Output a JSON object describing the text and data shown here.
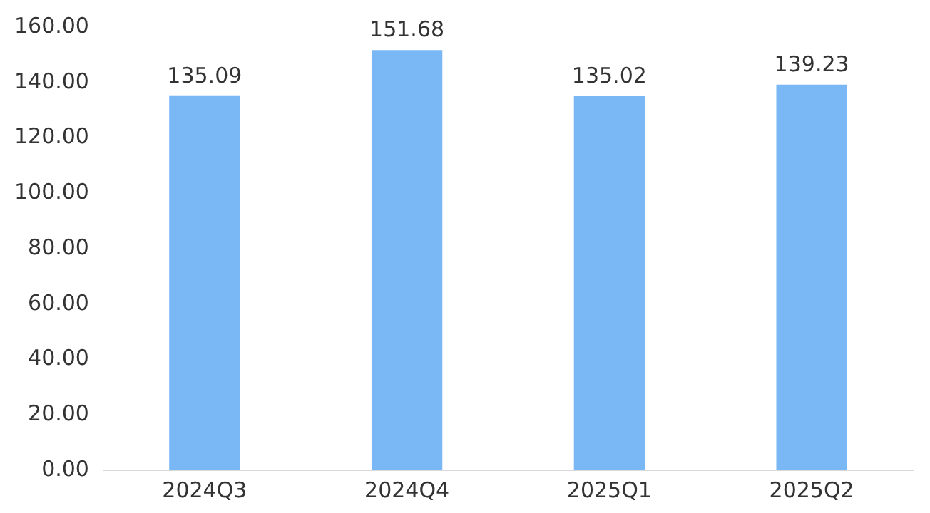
{
  "chart_data": {
    "type": "bar",
    "categories": [
      "2024Q3",
      "2024Q4",
      "2025Q1",
      "2025Q2"
    ],
    "values": [
      135.09,
      151.68,
      135.02,
      139.23
    ],
    "color": "#7ab8f5",
    "ylim": [
      0,
      160
    ],
    "yticks": [
      {
        "value": 0,
        "label": "0.00"
      },
      {
        "value": 20,
        "label": "20.00"
      },
      {
        "value": 40,
        "label": "40.00"
      },
      {
        "value": 60,
        "label": "60.00"
      },
      {
        "value": 80,
        "label": "80.00"
      },
      {
        "value": 100,
        "label": "100.00"
      },
      {
        "value": 120,
        "label": "120.00"
      },
      {
        "value": 140,
        "label": "140.00"
      },
      {
        "value": 160,
        "label": "160.00"
      }
    ],
    "data_labels": true,
    "grid": false,
    "legend": false
  }
}
